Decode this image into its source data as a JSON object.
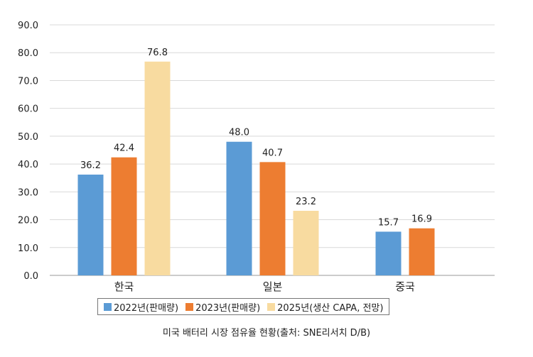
{
  "chart_data": {
    "type": "bar",
    "title": "",
    "xlabel": "",
    "ylabel": "",
    "ylim": [
      0,
      90
    ],
    "yticks": [
      0,
      10,
      20,
      30,
      40,
      50,
      60,
      70,
      80,
      90
    ],
    "ytick_labels": [
      "0.0",
      "10.0",
      "20.0",
      "30.0",
      "40.0",
      "50.0",
      "60.0",
      "70.0",
      "80.0",
      "90.0"
    ],
    "grid": true,
    "legend_position": "bottom",
    "categories": [
      "한국",
      "일본",
      "중국"
    ],
    "series": [
      {
        "name": "2022년(판매량)",
        "color": "#5b9bd5",
        "values": [
          36.2,
          48.0,
          15.7
        ],
        "labels": [
          "36.2",
          "48.0",
          "15.7"
        ]
      },
      {
        "name": "2023년(판매량)",
        "color": "#ed7d31",
        "values": [
          42.4,
          40.7,
          16.9
        ],
        "labels": [
          "42.4",
          "40.7",
          "16.9"
        ]
      },
      {
        "name": "2025년(생산 CAPA, 전망)",
        "color": "#f8dba0",
        "values": [
          76.8,
          23.2,
          null
        ],
        "labels": [
          "76.8",
          "23.2",
          ""
        ]
      }
    ]
  },
  "caption": "미국 배터리 시장 점유율 현황(출처: SNE리서치 D/B)"
}
